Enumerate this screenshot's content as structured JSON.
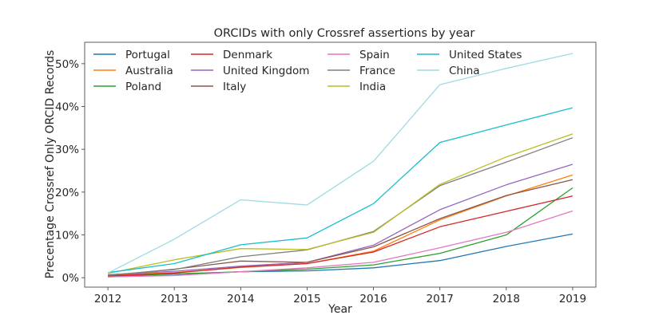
{
  "chart_data": {
    "type": "line",
    "title": "ORCIDs with only Crossref assertions by year",
    "xlabel": "Year",
    "ylabel": "Precentage Crossref Only ORCID Records",
    "x": [
      2012,
      2013,
      2014,
      2015,
      2016,
      2017,
      2018,
      2019
    ],
    "x_tick_labels": [
      "2012",
      "2013",
      "2014",
      "2015",
      "2016",
      "2017",
      "2018",
      "2019"
    ],
    "y_ticks": [
      0,
      10,
      20,
      30,
      40,
      50
    ],
    "y_tick_labels": [
      "0%",
      "10%",
      "20%",
      "30%",
      "40%",
      "50%"
    ],
    "xlim": [
      2011.65,
      2019.35
    ],
    "ylim": [
      -2.2,
      55
    ],
    "grid": false,
    "legend_position": "top-left",
    "legend_columns": 4,
    "series": [
      {
        "name": "Portugal",
        "color": "#1f77b4",
        "values": [
          0.2,
          0.6,
          1.4,
          1.6,
          2.3,
          4.0,
          7.3,
          10.2
        ]
      },
      {
        "name": "Australia",
        "color": "#ff7f0e",
        "values": [
          0.6,
          1.2,
          2.4,
          3.3,
          6.2,
          13.5,
          19.1,
          24.0
        ]
      },
      {
        "name": "Poland",
        "color": "#2ca02c",
        "values": [
          0.3,
          0.9,
          1.4,
          2.0,
          3.0,
          5.7,
          10.0,
          21.0
        ]
      },
      {
        "name": "Denmark",
        "color": "#d62728",
        "values": [
          0.4,
          1.1,
          2.5,
          3.3,
          6.0,
          11.9,
          15.5,
          19.1
        ]
      },
      {
        "name": "United Kingdom",
        "color": "#9467bd",
        "values": [
          0.7,
          1.5,
          2.7,
          3.6,
          7.6,
          15.9,
          21.7,
          26.5
        ]
      },
      {
        "name": "Italy",
        "color": "#8c564b",
        "values": [
          0.5,
          2.0,
          3.9,
          3.6,
          7.2,
          13.8,
          19.2,
          22.9
        ]
      },
      {
        "name": "Spain",
        "color": "#e377c2",
        "values": [
          0.2,
          0.5,
          1.4,
          2.3,
          3.6,
          7.0,
          10.6,
          15.6
        ]
      },
      {
        "name": "France",
        "color": "#7f7f7f",
        "values": [
          0.6,
          1.9,
          4.9,
          6.5,
          10.8,
          21.5,
          27.0,
          32.7
        ]
      },
      {
        "name": "India",
        "color": "#bcbd22",
        "values": [
          1.0,
          4.2,
          6.8,
          6.6,
          10.6,
          21.8,
          28.2,
          33.6
        ]
      },
      {
        "name": "United States",
        "color": "#17becf",
        "values": [
          1.2,
          3.3,
          7.7,
          9.3,
          17.3,
          31.6,
          35.7,
          39.7
        ]
      },
      {
        "name": "China",
        "color": "#9edae5",
        "values": [
          1.1,
          9.0,
          18.2,
          17.0,
          27.2,
          45.1,
          48.9,
          52.4
        ]
      }
    ]
  }
}
